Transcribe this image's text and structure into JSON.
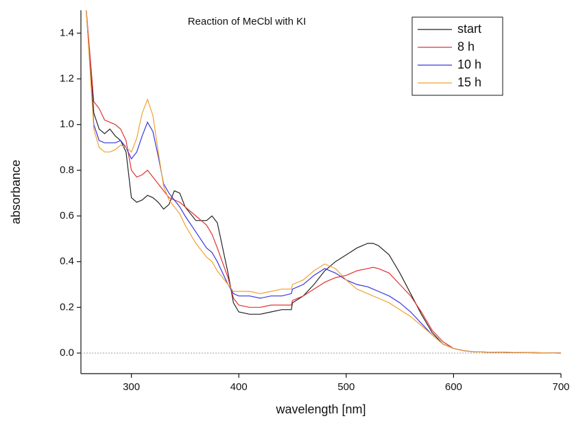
{
  "chart_data": {
    "type": "line",
    "title": "Reaction of MeCbl with KI",
    "x_label": "wavelength [nm]",
    "y_label": "absorbance",
    "x": [
      258,
      265,
      270,
      275,
      280,
      285,
      290,
      295,
      300,
      305,
      310,
      315,
      320,
      325,
      330,
      335,
      340,
      345,
      350,
      360,
      370,
      375,
      380,
      390,
      395,
      400,
      410,
      420,
      430,
      440,
      449,
      450,
      460,
      470,
      480,
      490,
      500,
      510,
      520,
      525,
      530,
      540,
      550,
      560,
      570,
      580,
      590,
      600,
      610,
      620,
      650,
      700
    ],
    "series": [
      {
        "name": "start",
        "color": "#222222",
        "values": [
          1.5,
          1.05,
          0.98,
          0.96,
          0.98,
          0.95,
          0.93,
          0.88,
          0.68,
          0.66,
          0.67,
          0.69,
          0.68,
          0.66,
          0.63,
          0.65,
          0.71,
          0.7,
          0.64,
          0.58,
          0.58,
          0.6,
          0.57,
          0.35,
          0.22,
          0.18,
          0.17,
          0.17,
          0.18,
          0.19,
          0.19,
          0.22,
          0.25,
          0.3,
          0.36,
          0.4,
          0.43,
          0.46,
          0.48,
          0.48,
          0.47,
          0.43,
          0.35,
          0.26,
          0.17,
          0.09,
          0.04,
          0.02,
          0.01,
          0.005,
          0.003,
          0.0
        ]
      },
      {
        "name": "8 h",
        "color": "#e03030",
        "values": [
          1.5,
          1.1,
          1.07,
          1.02,
          1.01,
          1.0,
          0.98,
          0.93,
          0.8,
          0.77,
          0.78,
          0.8,
          0.77,
          0.74,
          0.71,
          0.68,
          0.67,
          0.66,
          0.64,
          0.6,
          0.56,
          0.52,
          0.46,
          0.33,
          0.24,
          0.21,
          0.2,
          0.2,
          0.21,
          0.21,
          0.21,
          0.23,
          0.25,
          0.28,
          0.31,
          0.33,
          0.34,
          0.36,
          0.37,
          0.375,
          0.37,
          0.35,
          0.3,
          0.25,
          0.18,
          0.1,
          0.05,
          0.02,
          0.01,
          0.005,
          0.003,
          0.0
        ]
      },
      {
        "name": "10 h",
        "color": "#3535e0",
        "values": [
          1.5,
          1.0,
          0.93,
          0.92,
          0.92,
          0.92,
          0.93,
          0.9,
          0.85,
          0.88,
          0.95,
          1.01,
          0.97,
          0.86,
          0.74,
          0.7,
          0.67,
          0.64,
          0.6,
          0.53,
          0.46,
          0.44,
          0.4,
          0.3,
          0.26,
          0.25,
          0.25,
          0.24,
          0.25,
          0.25,
          0.26,
          0.28,
          0.3,
          0.34,
          0.37,
          0.35,
          0.32,
          0.3,
          0.29,
          0.28,
          0.27,
          0.25,
          0.22,
          0.18,
          0.13,
          0.08,
          0.04,
          0.02,
          0.01,
          0.005,
          0.003,
          0.0
        ]
      },
      {
        "name": "15 h",
        "color": "#f0a030",
        "values": [
          1.5,
          0.98,
          0.9,
          0.88,
          0.88,
          0.89,
          0.91,
          0.9,
          0.88,
          0.94,
          1.05,
          1.11,
          1.04,
          0.88,
          0.73,
          0.67,
          0.64,
          0.61,
          0.56,
          0.48,
          0.42,
          0.4,
          0.36,
          0.3,
          0.27,
          0.27,
          0.27,
          0.26,
          0.27,
          0.28,
          0.28,
          0.3,
          0.32,
          0.36,
          0.39,
          0.37,
          0.32,
          0.28,
          0.26,
          0.25,
          0.24,
          0.22,
          0.19,
          0.16,
          0.12,
          0.08,
          0.04,
          0.02,
          0.01,
          0.005,
          0.003,
          0.0
        ]
      }
    ],
    "xlim": [
      253,
      700
    ],
    "xticks": [
      300,
      400,
      500,
      600,
      700
    ],
    "ylim": [
      -0.09,
      1.5
    ],
    "yticks": [
      {
        "value": 0,
        "label": "0.0"
      },
      0.2,
      0.4,
      0.6,
      0.8,
      {
        "value": 1,
        "label": "1.0"
      },
      1.2,
      1.4
    ],
    "reference_line": 0,
    "legend": "upper right"
  }
}
